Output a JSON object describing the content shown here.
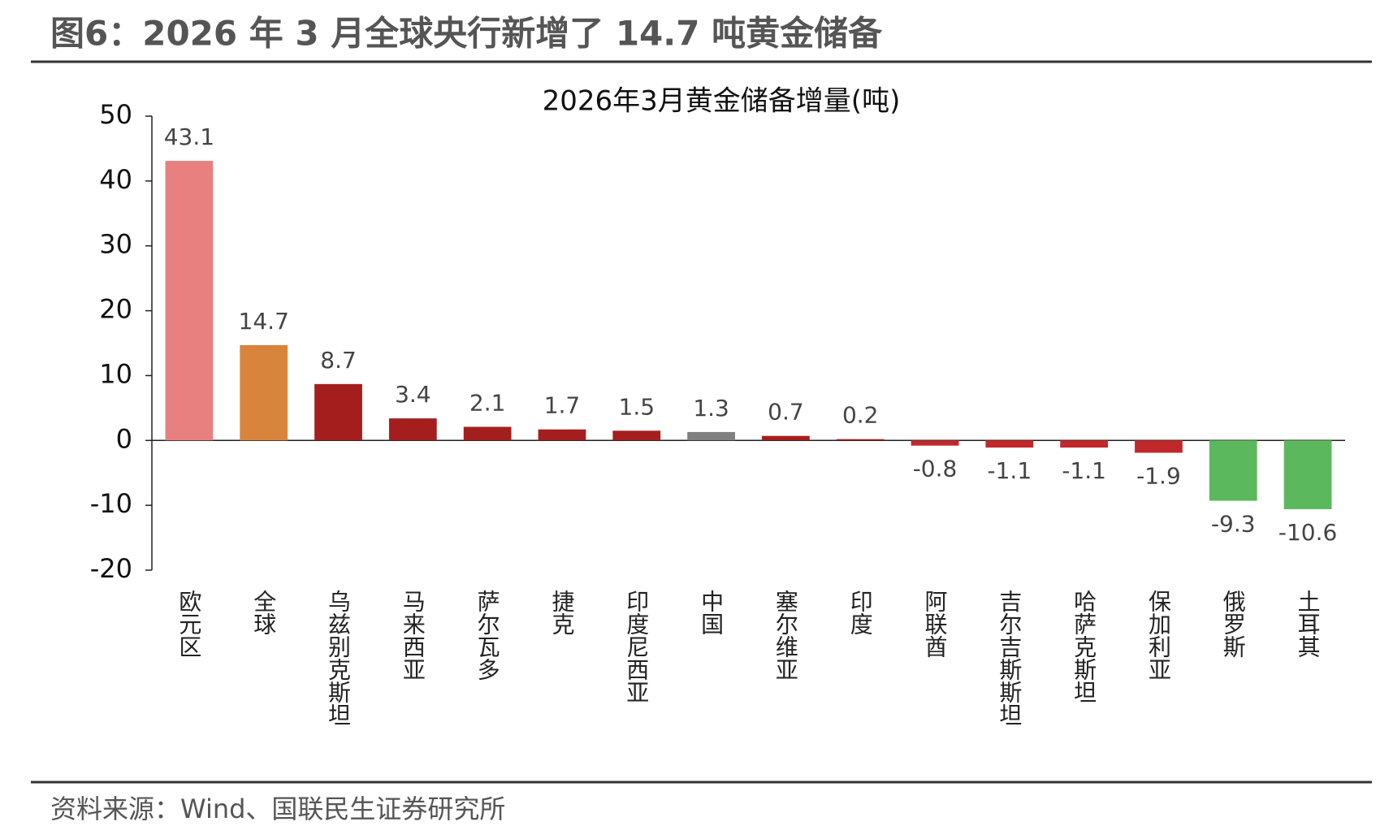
{
  "header": {
    "title": "图6：2026 年 3 月全球央行新增了 14.7 吨黄金储备"
  },
  "chart_data": {
    "type": "bar",
    "title": "2026年3月黄金储备增量(吨)",
    "categories": [
      "欧元区",
      "全球",
      "乌兹别克斯坦",
      "马来西亚",
      "萨尔瓦多",
      "捷克",
      "印度尼西亚",
      "中国",
      "塞尔维亚",
      "印度",
      "阿联酋",
      "吉尔吉斯斯坦",
      "哈萨克斯坦",
      "保加利亚",
      "俄罗斯",
      "土耳其"
    ],
    "values": [
      43.1,
      14.7,
      8.7,
      3.4,
      2.1,
      1.7,
      1.5,
      1.3,
      0.7,
      0.2,
      -0.8,
      -1.1,
      -1.1,
      -1.9,
      -9.3,
      -10.6
    ],
    "colors": [
      "#e88080",
      "#d9843d",
      "#a51e1e",
      "#a51e1e",
      "#a51e1e",
      "#a51e1e",
      "#a51e1e",
      "#808080",
      "#a51e1e",
      "#a51e1e",
      "#c0282b",
      "#c0282b",
      "#c0282b",
      "#c0282b",
      "#5cb85c",
      "#5cb85c"
    ],
    "ylim": [
      -20,
      50
    ],
    "yticks": [
      -20,
      -10,
      0,
      10,
      20,
      30,
      40,
      50
    ],
    "grid": false
  },
  "footer": {
    "source": "资料来源：Wind、国联民生证券研究所"
  }
}
